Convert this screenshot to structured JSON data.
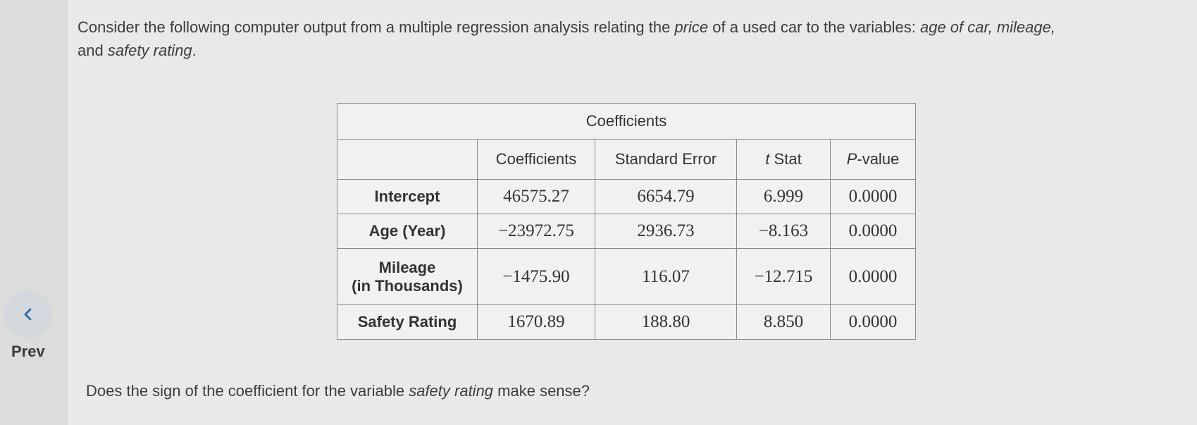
{
  "intro": {
    "part1": "Consider the following computer output from a multiple regression analysis relating the ",
    "price": "price",
    "part2": " of a used car to the variables: ",
    "vars": "age of car, mileage,",
    "part3": " and ",
    "safety": "safety rating",
    "part4": "."
  },
  "nav": {
    "prev_label": "Prev",
    "prev_icon": "chevron-left-icon"
  },
  "table": {
    "caption": "Coefficients",
    "headers": {
      "blank": "",
      "coefficients": "Coefficients",
      "std_error": "Standard Error",
      "t_italic": "t",
      "t_rest": " Stat",
      "p_italic": "P",
      "p_rest": "-value"
    },
    "rows": [
      {
        "label": "Intercept",
        "coef": "46575.27",
        "se": "6654.79",
        "t": "6.999",
        "p": "0.0000"
      },
      {
        "label": "Age (Year)",
        "coef": "−23972.75",
        "se": "2936.73",
        "t": "−8.163",
        "p": "0.0000"
      },
      {
        "label_line1": "Mileage",
        "label_line2": "(in Thousands)",
        "coef": "−1475.90",
        "se": "116.07",
        "t": "−12.715",
        "p": "0.0000"
      },
      {
        "label": "Safety Rating",
        "coef": "1670.89",
        "se": "188.80",
        "t": "8.850",
        "p": "0.0000"
      }
    ]
  },
  "question": {
    "part1": "Does the sign of the coefficient for the variable ",
    "var": "safety rating",
    "part2": " make sense?"
  }
}
